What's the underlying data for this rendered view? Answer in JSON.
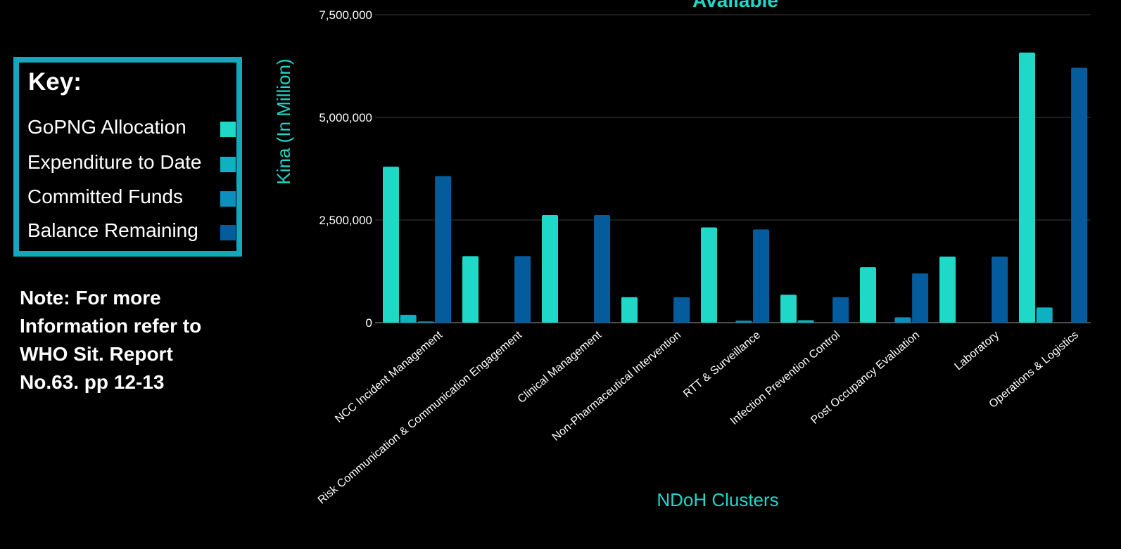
{
  "key": {
    "title": "Key:",
    "items": [
      {
        "label": "GoPNG Allocation",
        "color": "#1fd8c8"
      },
      {
        "label": "Expenditure to Date",
        "color": "#0fb0c2"
      },
      {
        "label": "Committed Funds",
        "color": "#0c8fbd"
      },
      {
        "label": "Balance Remaining",
        "color": "#055c9d"
      }
    ]
  },
  "note": {
    "lines": [
      "Note: For more",
      "Information refer to",
      "WHO Sit. Report",
      "No.63. pp 12-13"
    ]
  },
  "chart_data": {
    "type": "bar",
    "title": "Available",
    "xlabel": "NDoH Clusters",
    "ylabel": "Kina (In Million)",
    "ylim": [
      0,
      7500000
    ],
    "yticks": [
      0,
      2500000,
      5000000,
      7500000
    ],
    "ytick_labels": [
      "0",
      "2,500,000",
      "5,000,000",
      "7,500,000"
    ],
    "grid": true,
    "categories": [
      "NCC Incident Management",
      "Risk Communication & Communication Engagement",
      "Clinical Management",
      "Non-Pharmaceutical Intervention",
      "RTT & Surveillance",
      "Infection Prevention Control",
      "Post Occupancy Evaluation",
      "Laboratory",
      "Operations & Logistics"
    ],
    "series": [
      {
        "name": "GoPNG Allocation",
        "color": "#1fd8c8",
        "values": [
          3800000,
          1620000,
          2620000,
          620000,
          2320000,
          680000,
          1350000,
          1610000,
          6580000
        ]
      },
      {
        "name": "Expenditure to Date",
        "color": "#0fb0c2",
        "values": [
          190000,
          0,
          0,
          0,
          0,
          60000,
          0,
          0,
          370000
        ]
      },
      {
        "name": "Committed Funds",
        "color": "#0c8fbd",
        "values": [
          30000,
          0,
          0,
          0,
          50000,
          0,
          130000,
          0,
          0
        ]
      },
      {
        "name": "Balance Remaining",
        "color": "#055c9d",
        "values": [
          3570000,
          1620000,
          2620000,
          620000,
          2270000,
          620000,
          1200000,
          1610000,
          6210000
        ]
      }
    ]
  }
}
